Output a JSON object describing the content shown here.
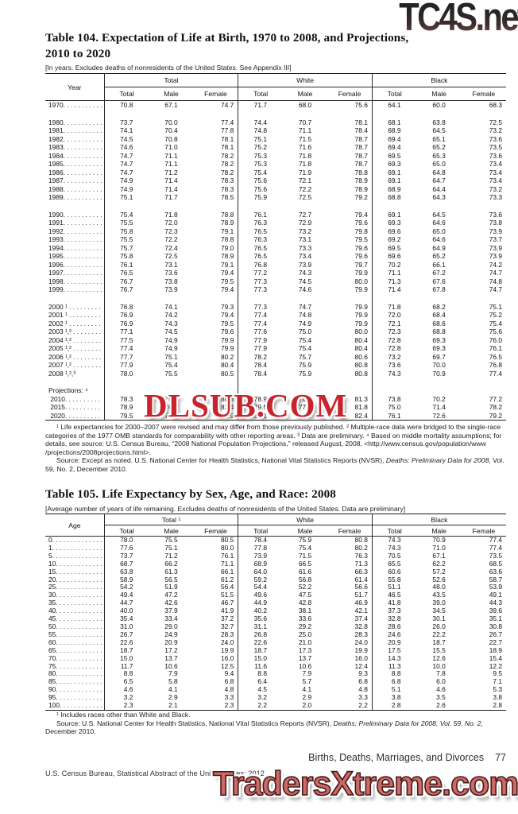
{
  "watermarks": {
    "top": "TC4S.net",
    "middle": "DLSUB.COM",
    "bottom": "TradersXtreme.com"
  },
  "table104": {
    "title_line1": "Table 104. Expectation of Life at Birth, 1970 to 2008, and Projections,",
    "title_line2": "2010 to 2020",
    "note": "[In years. Excludes deaths of nonresidents of the United States. See Appendix III]",
    "stub_header": "Year",
    "groups": [
      "Total",
      "White",
      "Black"
    ],
    "subcolumns": [
      "Total",
      "Male",
      "Female"
    ],
    "rows": [
      {
        "label": "1970. . . . . . . . . . .",
        "values": [
          "70.8",
          "67.1",
          "74.7",
          "71.7",
          "68.0",
          "75.6",
          "64.1",
          "60.0",
          "68.3"
        ]
      },
      {
        "spacer": true
      },
      {
        "label": "1980. . . . . . . . . . .",
        "values": [
          "73.7",
          "70.0",
          "77.4",
          "74.4",
          "70.7",
          "78.1",
          "68.1",
          "63.8",
          "72.5"
        ]
      },
      {
        "label": "1981. . . . . . . . . . .",
        "values": [
          "74.1",
          "70.4",
          "77.8",
          "74.8",
          "71.1",
          "78.4",
          "68.9",
          "64.5",
          "73.2"
        ]
      },
      {
        "label": "1982. . . . . . . . . . .",
        "values": [
          "74.5",
          "70.8",
          "78.1",
          "75.1",
          "71.5",
          "78.7",
          "69.4",
          "65.1",
          "73.6"
        ]
      },
      {
        "label": "1983. . . . . . . . . . .",
        "values": [
          "74.6",
          "71.0",
          "78.1",
          "75.2",
          "71.6",
          "78.7",
          "69.4",
          "65.2",
          "73.5"
        ]
      },
      {
        "label": "1984. . . . . . . . . . .",
        "values": [
          "74.7",
          "71.1",
          "78.2",
          "75.3",
          "71.8",
          "78.7",
          "69.5",
          "65.3",
          "73.6"
        ]
      },
      {
        "label": "1985. . . . . . . . . . .",
        "values": [
          "74.7",
          "71.1",
          "78.2",
          "75.3",
          "71.8",
          "78.7",
          "69.3",
          "65.0",
          "73.4"
        ]
      },
      {
        "label": "1986. . . . . . . . . . .",
        "values": [
          "74.7",
          "71.2",
          "78.2",
          "75.4",
          "71.9",
          "78.8",
          "69.1",
          "64.8",
          "73.4"
        ]
      },
      {
        "label": "1987. . . . . . . . . . .",
        "values": [
          "74.9",
          "71.4",
          "78.3",
          "75.6",
          "72.1",
          "78.9",
          "69.1",
          "64.7",
          "73.4"
        ]
      },
      {
        "label": "1988. . . . . . . . . . .",
        "values": [
          "74.9",
          "71.4",
          "78.3",
          "75.6",
          "72.2",
          "78.9",
          "68.9",
          "64.4",
          "73.2"
        ]
      },
      {
        "label": "1989. . . . . . . . . . .",
        "values": [
          "75.1",
          "71.7",
          "78.5",
          "75.9",
          "72.5",
          "79.2",
          "68.8",
          "64.3",
          "73.3"
        ]
      },
      {
        "spacer": true
      },
      {
        "label": "1990. . . . . . . . . . .",
        "values": [
          "75.4",
          "71.8",
          "78.8",
          "76.1",
          "72.7",
          "79.4",
          "69.1",
          "64.5",
          "73.6"
        ]
      },
      {
        "label": "1991. . . . . . . . . . .",
        "values": [
          "75.5",
          "72.0",
          "78.9",
          "76.3",
          "72.9",
          "79.6",
          "69.3",
          "64.6",
          "73.8"
        ]
      },
      {
        "label": "1992. . . . . . . . . . .",
        "values": [
          "75.8",
          "72.3",
          "79.1",
          "76.5",
          "73.2",
          "79.8",
          "69.6",
          "65.0",
          "73.9"
        ]
      },
      {
        "label": "1993. . . . . . . . . . .",
        "values": [
          "75.5",
          "72.2",
          "78.8",
          "76.3",
          "73.1",
          "79.5",
          "69.2",
          "64.6",
          "73.7"
        ]
      },
      {
        "label": "1994. . . . . . . . . . .",
        "values": [
          "75.7",
          "72.4",
          "79.0",
          "76.5",
          "73.3",
          "79.6",
          "69.5",
          "64.9",
          "73.9"
        ]
      },
      {
        "label": "1995. . . . . . . . . . .",
        "values": [
          "75.8",
          "72.5",
          "78.9",
          "76.5",
          "73.4",
          "79.6",
          "69.6",
          "65.2",
          "73.9"
        ]
      },
      {
        "label": "1996. . . . . . . . . . .",
        "values": [
          "76.1",
          "73.1",
          "79.1",
          "76.8",
          "73.9",
          "79.7",
          "70.2",
          "66.1",
          "74.2"
        ]
      },
      {
        "label": "1997. . . . . . . . . . .",
        "values": [
          "76.5",
          "73.6",
          "79.4",
          "77.2",
          "74.3",
          "79.9",
          "71.1",
          "67.2",
          "74.7"
        ]
      },
      {
        "label": "1998. . . . . . . . . . .",
        "values": [
          "76.7",
          "73.8",
          "79.5",
          "77.3",
          "74.5",
          "80.0",
          "71.3",
          "67.6",
          "74.8"
        ]
      },
      {
        "label": "1999. . . . . . . . . . .",
        "values": [
          "76.7",
          "73.9",
          "79.4",
          "77.3",
          "74.6",
          "79.9",
          "71.4",
          "67.8",
          "74.7"
        ]
      },
      {
        "spacer": true
      },
      {
        "label": "2000 ¹ . . . . . . . . .",
        "values": [
          "76.8",
          "74.1",
          "79.3",
          "77.3",
          "74.7",
          "79.9",
          "71.8",
          "68.2",
          "75.1"
        ]
      },
      {
        "label": "2001 ¹ . . . . . . . . .",
        "values": [
          "76.9",
          "74.2",
          "79.4",
          "77.4",
          "74.8",
          "79.9",
          "72.0",
          "68.4",
          "75.2"
        ]
      },
      {
        "label": "2002 ¹ . . . . . . . . .",
        "values": [
          "76.9",
          "74.3",
          "79.5",
          "77.4",
          "74.9",
          "79.9",
          "72.1",
          "68.6",
          "75.4"
        ]
      },
      {
        "label": "2003 ¹,² . . . . . . . .",
        "values": [
          "77.1",
          "74.5",
          "79.6",
          "77.6",
          "75.0",
          "80.0",
          "72.3",
          "68.8",
          "75.6"
        ]
      },
      {
        "label": "2004 ¹,² . . . . . . . .",
        "values": [
          "77.5",
          "74.9",
          "79.9",
          "77.9",
          "75.4",
          "80.4",
          "72.8",
          "69.3",
          "76.0"
        ]
      },
      {
        "label": "2005 ¹,² . . . . . . . .",
        "values": [
          "77.4",
          "74.9",
          "79.9",
          "77.9",
          "75.4",
          "80.4",
          "72.8",
          "69.3",
          "76.1"
        ]
      },
      {
        "label": "2006 ¹,² . . . . . . . .",
        "values": [
          "77.7",
          "75.1",
          "80.2",
          "78.2",
          "75.7",
          "80.6",
          "73.2",
          "69.7",
          "76.5"
        ]
      },
      {
        "label": "2007 ¹,² . . . . . . . .",
        "values": [
          "77.9",
          "75.4",
          "80.4",
          "78.4",
          "75.9",
          "80.8",
          "73.6",
          "70.0",
          "76.8"
        ]
      },
      {
        "label": "2008 ¹,²,³",
        "values": [
          "78.0",
          "75.5",
          "80.5",
          "78.4",
          "75.9",
          "80.8",
          "74.3",
          "70.9",
          "77.4"
        ]
      },
      {
        "spacer": true
      },
      {
        "label": "Projections: ⁴",
        "values": [
          "",
          "",
          "",
          "",
          "",
          "",
          "",
          "",
          ""
        ]
      },
      {
        "label": " 2010. . . . . . . . . .",
        "values": [
          "78.3",
          "75.7",
          "80.8",
          "78.9",
          "76.5",
          "81.3",
          "73.8",
          "70.2",
          "77.2"
        ]
      },
      {
        "label": " 2015. . . . . . . . . .",
        "values": [
          "78.9",
          "76.4",
          "81.4",
          "79.5",
          "77.1",
          "81.8",
          "75.0",
          "71.4",
          "78.2"
        ]
      },
      {
        "label": " 2020. . . . . . . . . .",
        "values": [
          "79.5",
          "77.1",
          "81.9",
          "80.1",
          "77.7",
          "82.4",
          "76.1",
          "72.6",
          "79.2"
        ]
      }
    ],
    "footnote_para": "¹ Life expectancies for 2000–2007 were revised and may differ from those previously published. ² Multiple-race data were bridged to the single-race categories of the 1977 OMB standards for comparability with other reporting areas. ³ Data are preliminary. ⁴ Based on middle mortality assumptions; for details, see source: U.S. Census Bureau, “2008 National Population Projections,” released August, 2008, <http://www.census.gov/population/www /projections/2008projections.html>.",
    "source_prefix": "Source: Except as noted. U.S. National Center for Health Statistics, National Vital Statistics Reports (NVSR), ",
    "source_italic": "Deaths: Preliminary Data for 2008",
    "source_suffix": ", Vol. 59, No. 2, December 2010."
  },
  "table105": {
    "title_line1": "Table 105. Life Expectancy by Sex, Age, and Race: 2008",
    "note": "[Average number of years of life remaining. Excludes deaths of nonresidents of the United States. Data are preliminary]",
    "stub_header": "Age",
    "groups": [
      "Total ¹",
      "White",
      "Black"
    ],
    "subcolumns": [
      "Total",
      "Male",
      "Female"
    ],
    "rows": [
      {
        "label": "0. . . . . . . . . . . . . .",
        "values": [
          "78.0",
          "75.5",
          "80.5",
          "78.4",
          "75.9",
          "80.8",
          "74.3",
          "70.9",
          "77.4"
        ]
      },
      {
        "label": "1. . . . . . . . . . . . . .",
        "values": [
          "77.6",
          "75.1",
          "80.0",
          "77.8",
          "75.4",
          "80.2",
          "74.3",
          "71.0",
          "77.4"
        ]
      },
      {
        "label": "5. . . . . . . . . . . . . .",
        "values": [
          "73.7",
          "71.2",
          "76.1",
          "73.9",
          "71.5",
          "76.3",
          "70.5",
          "67.1",
          "73.5"
        ]
      },
      {
        "label": "10. . . . . . . . . . . . .",
        "values": [
          "68.7",
          "66.2",
          "71.1",
          "68.9",
          "66.5",
          "71.3",
          "65.5",
          "62.2",
          "68.5"
        ]
      },
      {
        "label": "15. . . . . . . . . . . . .",
        "values": [
          "63.8",
          "61.3",
          "66.1",
          "64.0",
          "61.6",
          "66.3",
          "60.6",
          "57.2",
          "63.6"
        ]
      },
      {
        "label": "20. . . . . . . . . . . . .",
        "values": [
          "58.9",
          "56.5",
          "61.2",
          "59.2",
          "56.8",
          "61.4",
          "55.8",
          "52.6",
          "58.7"
        ]
      },
      {
        "label": "25. . . . . . . . . . . . .",
        "values": [
          "54.2",
          "51.9",
          "56.4",
          "54.4",
          "52.2",
          "56.6",
          "51.1",
          "48.0",
          "53.9"
        ]
      },
      {
        "label": "30. . . . . . . . . . . . .",
        "values": [
          "49.4",
          "47.2",
          "51.5",
          "49.6",
          "47.5",
          "51.7",
          "46.5",
          "43.5",
          "49.1"
        ]
      },
      {
        "label": "35. . . . . . . . . . . . .",
        "values": [
          "44.7",
          "42.6",
          "46.7",
          "44.9",
          "42.8",
          "46.9",
          "41.8",
          "39.0",
          "44.3"
        ]
      },
      {
        "label": "40. . . . . . . . . . . . .",
        "values": [
          "40.0",
          "37.9",
          "41.9",
          "40.2",
          "38.1",
          "42.1",
          "37.3",
          "34.5",
          "39.6"
        ]
      },
      {
        "label": "45. . . . . . . . . . . . .",
        "values": [
          "35.4",
          "33.4",
          "37.2",
          "35.6",
          "33.6",
          "37.4",
          "32.8",
          "30.1",
          "35.1"
        ]
      },
      {
        "label": "50. . . . . . . . . . . . .",
        "values": [
          "31.0",
          "29.0",
          "32.7",
          "31.1",
          "29.2",
          "32.8",
          "28.6",
          "26.0",
          "30.8"
        ]
      },
      {
        "label": "55. . . . . . . . . . . . .",
        "values": [
          "26.7",
          "24.9",
          "28.3",
          "26.8",
          "25.0",
          "28.3",
          "24.6",
          "22.2",
          "26.7"
        ]
      },
      {
        "label": "60. . . . . . . . . . . . .",
        "values": [
          "22.6",
          "20.9",
          "24.0",
          "22.6",
          "21.0",
          "24.0",
          "20.9",
          "18.7",
          "22.7"
        ]
      },
      {
        "label": "65. . . . . . . . . . . . .",
        "values": [
          "18.7",
          "17.2",
          "19.9",
          "18.7",
          "17.3",
          "19.9",
          "17.5",
          "15.5",
          "18.9"
        ]
      },
      {
        "label": "70. . . . . . . . . . . . .",
        "values": [
          "15.0",
          "13.7",
          "16.0",
          "15.0",
          "13.7",
          "16.0",
          "14.3",
          "12.6",
          "15.4"
        ]
      },
      {
        "label": "75. . . . . . . . . . . . .",
        "values": [
          "11.7",
          "10.6",
          "12.5",
          "11.6",
          "10.6",
          "12.4",
          "11.3",
          "10.0",
          "12.2"
        ]
      },
      {
        "label": "80. . . . . . . . . . . . .",
        "values": [
          "8.8",
          "7.9",
          "9.4",
          "8.8",
          "7.9",
          "9.3",
          "8.8",
          "7.8",
          "9.5"
        ]
      },
      {
        "label": "85. . . . . . . . . . . . .",
        "values": [
          "6.5",
          "5.8",
          "6.8",
          "6.4",
          "5.7",
          "6.8",
          "6.8",
          "6.0",
          "7.1"
        ]
      },
      {
        "label": "90. . . . . . . . . . . . .",
        "values": [
          "4.6",
          "4.1",
          "4.8",
          "4.5",
          "4.1",
          "4.8",
          "5.1",
          "4.6",
          "5.3"
        ]
      },
      {
        "label": "95. . . . . . . . . . . . .",
        "values": [
          "3.2",
          "2.9",
          "3.3",
          "3.2",
          "2.9",
          "3.3",
          "3.8",
          "3.5",
          "3.8"
        ]
      },
      {
        "label": "100. . . . . . . . . . . .",
        "values": [
          "2.3",
          "2.1",
          "2.3",
          "2.2",
          "2.0",
          "2.2",
          "2.8",
          "2.6",
          "2.8"
        ]
      }
    ],
    "footnote_para": "¹ Includes races other than White and Black.",
    "source_prefix": "Source: U.S. National Center for Health Statistics, National Vital Statistics Reports (NVSR), ",
    "source_italic": "Deaths: Preliminary Data for 2008, Vol. 59, No. 2,",
    "source_suffix": " December 2010."
  },
  "footer": {
    "chapter_title": "Births, Deaths, Marriages, and Divorces",
    "page_number": "77",
    "imprint": "U.S. Census Bureau, Statistical Abstract of the United States: 2012"
  }
}
